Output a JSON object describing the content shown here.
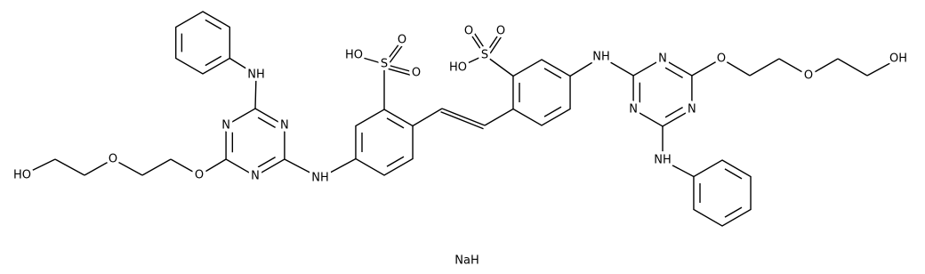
{
  "labels": [
    "NH",
    "N",
    "N",
    "N",
    "O",
    "O",
    "HO",
    "NH",
    "S",
    "O",
    "O",
    "HO",
    "S",
    "O",
    "O",
    "HO",
    "NH",
    "N",
    "N",
    "N",
    "O",
    "O",
    "OH",
    "NH"
  ],
  "salt": "NaH"
}
